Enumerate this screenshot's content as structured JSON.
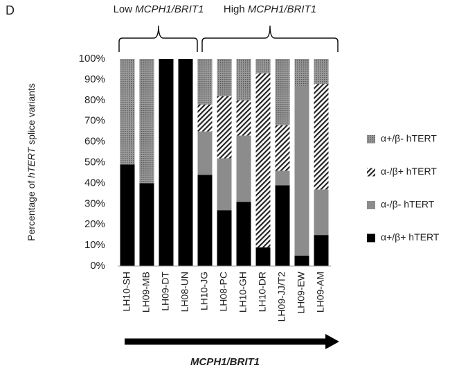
{
  "panel": "D",
  "chart_data": {
    "type": "stacked_bar",
    "ylabel_parts": [
      "Percentage of ",
      "hTERT",
      " splice variants"
    ],
    "group_low_parts": [
      "Low ",
      "MCPH1/BRIT1"
    ],
    "group_high_parts": [
      "High ",
      "MCPH1/BRIT1"
    ],
    "xlabel": "MCPH1/BRIT1",
    "categories": [
      "LH10-SH",
      "LH09-MB",
      "LH09-DT",
      "LH08-UN",
      "LH10-JG",
      "LH08-PC",
      "LH10-GH",
      "LH10-DR",
      "LH09-JJ/T2",
      "LH09-EW",
      "LH09-AM"
    ],
    "series": [
      {
        "name": "α+/β+  hTERT",
        "color": "#000000",
        "pattern": "solid",
        "values": [
          49,
          40,
          100,
          100,
          44,
          27,
          31,
          9,
          39,
          5,
          15
        ]
      },
      {
        "name": "α-/β-  hTERT",
        "color": "#8c8c8c",
        "pattern": "solid",
        "values": [
          0,
          0,
          0,
          0,
          21,
          25,
          32,
          0,
          7,
          82,
          22
        ]
      },
      {
        "name": "α-/β+  hTERT",
        "color": "#222222",
        "pattern": "hatch",
        "values": [
          0,
          0,
          0,
          0,
          13,
          30,
          17,
          84,
          22,
          0,
          51
        ]
      },
      {
        "name": "α+/β-  hTERT",
        "color": "#777777",
        "pattern": "dots",
        "values": [
          51,
          60,
          0,
          0,
          22,
          18,
          20,
          7,
          32,
          13,
          12
        ]
      }
    ],
    "ylim": [
      0,
      100
    ],
    "yticks": [
      {
        "value": 0,
        "label": "0%"
      },
      {
        "value": 10,
        "label": "10%"
      },
      {
        "value": 20,
        "label": "20%"
      },
      {
        "value": 30,
        "label": "30%"
      },
      {
        "value": 40,
        "label": "40%"
      },
      {
        "value": 50,
        "label": "50%"
      },
      {
        "value": 60,
        "label": "60%"
      },
      {
        "value": 70,
        "label": "70%"
      },
      {
        "value": 80,
        "label": "80%"
      },
      {
        "value": 90,
        "label": "90%"
      },
      {
        "value": 100,
        "label": "100%"
      }
    ],
    "grid": false
  }
}
